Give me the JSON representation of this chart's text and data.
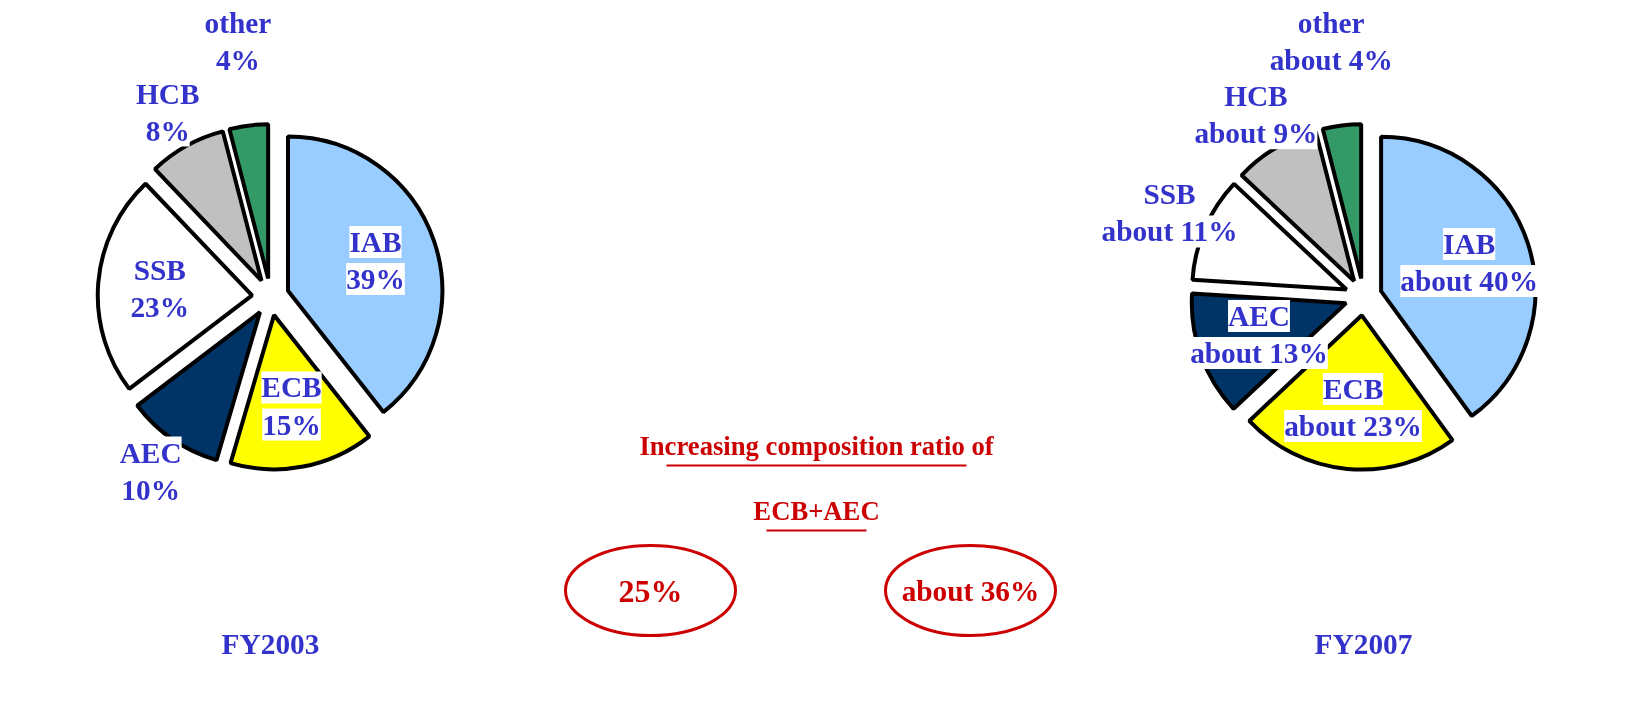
{
  "chart_data": [
    {
      "type": "pie",
      "title": "FY2003",
      "categories": [
        "IAB",
        "ECB",
        "AEC",
        "SSB",
        "HCB",
        "other"
      ],
      "values": [
        39,
        15,
        10,
        23,
        8,
        4
      ],
      "value_labels": [
        "39%",
        "15%",
        "10%",
        "23%",
        "8%",
        "4%"
      ],
      "colors": [
        "#99ccff",
        "#ffff00",
        "#003366",
        "#ffffff",
        "#c0c0c0",
        "#339966"
      ]
    },
    {
      "type": "other",
      "annotations": [
        "Increasing composition ratio of",
        "ECB+AEC",
        "25%",
        "about 36%"
      ]
    },
    {
      "type": "pie",
      "title": "FY2007",
      "categories": [
        "IAB",
        "ECB",
        "AEC",
        "SSB",
        "HCB",
        "other"
      ],
      "values": [
        40,
        23,
        13,
        11,
        9,
        4
      ],
      "value_labels": [
        "about 40%",
        "about 23%",
        "about 13%",
        "about 11%",
        "about 9%",
        "about 4%"
      ],
      "colors": [
        "#99ccff",
        "#ffff00",
        "#003366",
        "#ffffff",
        "#c0c0c0",
        "#339966"
      ]
    }
  ]
}
